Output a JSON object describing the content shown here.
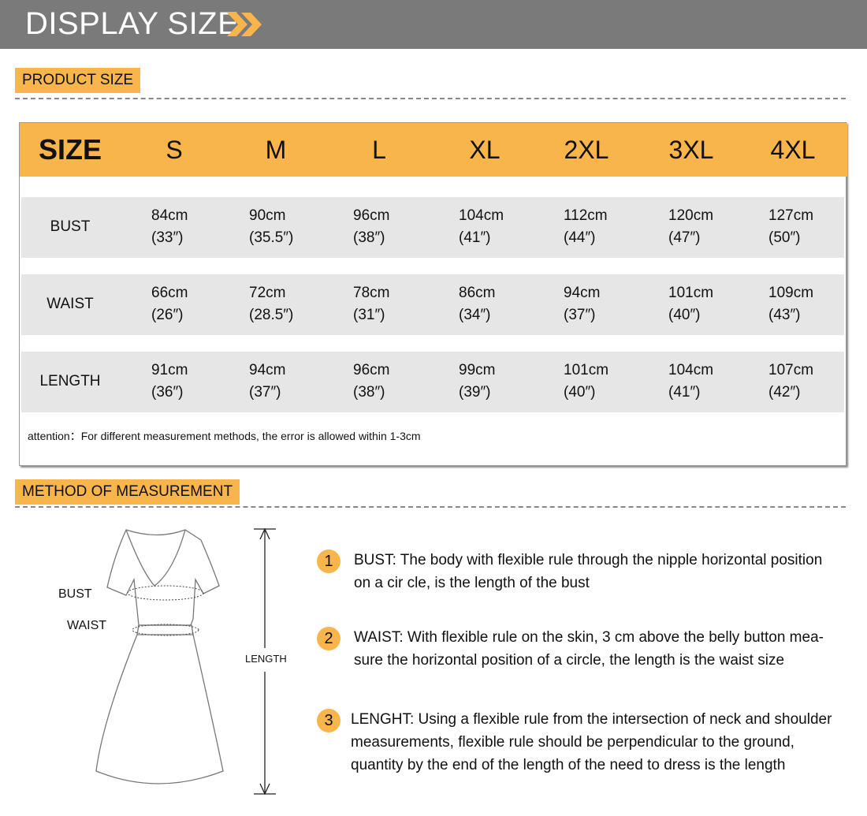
{
  "banner": {
    "title": "DISPLAY SIZE",
    "icon": "double-chevron-right-icon",
    "accent": "#f7b54c"
  },
  "product_size": {
    "tag": "PRODUCT SIZE"
  },
  "table": {
    "header_label": "SIZE",
    "sizes": [
      "S",
      "M",
      "L",
      "XL",
      "2XL",
      "3XL",
      "4XL"
    ],
    "rows": [
      {
        "label": "BUST",
        "cm": [
          "84cm",
          "90cm",
          "96cm",
          "104cm",
          "112cm",
          "120cm",
          "127cm"
        ],
        "in": [
          "(33″)",
          "(35.5″)",
          "(38″)",
          "(41″)",
          "(44″)",
          "(47″)",
          "(50″)"
        ]
      },
      {
        "label": "WAIST",
        "cm": [
          "66cm",
          "72cm",
          "78cm",
          "86cm",
          "94cm",
          "101cm",
          "109cm"
        ],
        "in": [
          "(26″)",
          "(28.5″)",
          "(31″)",
          "(34″)",
          "(37″)",
          "(40″)",
          "(43″)"
        ]
      },
      {
        "label": "LENGTH",
        "cm": [
          "91cm",
          "94cm",
          "96cm",
          "99cm",
          "101cm",
          "104cm",
          "107cm"
        ],
        "in": [
          "(36″)",
          "(37″)",
          "(38″)",
          "(39″)",
          "(40″)",
          "(41″)",
          "(42″)"
        ]
      }
    ],
    "attention": "attention：For different measurement methods, the error is allowed within 1-3cm"
  },
  "method": {
    "tag": "METHOD OF MEASUREMENT",
    "diagram": {
      "bust": "BUST",
      "waist": "WAIST",
      "length": "LENGTH"
    },
    "steps": [
      {
        "num": "1",
        "text": "BUST: The body with flexible rule through the nipple horizontal position on a cir   cle, is the length of the bust"
      },
      {
        "num": "2",
        "text": "WAIST: With flexible rule on the skin, 3 cm above the belly button mea-sure the horizontal position of a circle, the length is the waist size"
      },
      {
        "num": "3",
        "text": "LENGHT: Using a flexible rule from the intersection of neck and shoulder measurements, flexible rule should be perpendicular to the ground, quantity by the end of the length of the need to dress is the length"
      }
    ]
  }
}
